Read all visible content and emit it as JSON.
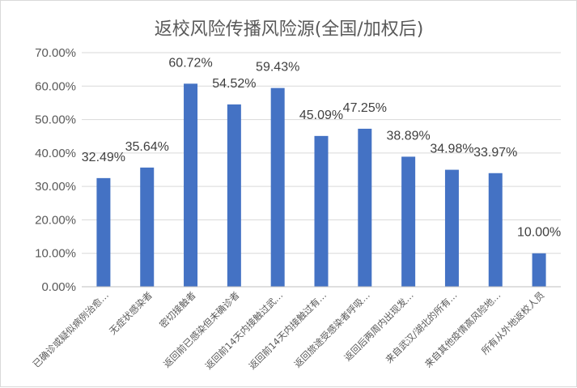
{
  "chart_data": {
    "type": "bar",
    "title": "返校风险传播风险源(全国/加权后)",
    "categories": [
      "已确诊或疑似病例治愈…",
      "无症状感染者",
      "密切接触者",
      "返回前已感染但未确诊者",
      "返回前14天内接触过武…",
      "返回前14天内接触过有…",
      "返回旅途受感染者呼吸…",
      "返回后两周内出现发…",
      "来自武汉/湖北的所有…",
      "来自其他疫情高风险地…",
      "所有从外地返校人员"
    ],
    "values": [
      32.49,
      35.64,
      60.72,
      54.52,
      59.43,
      45.09,
      47.25,
      38.89,
      34.98,
      33.97,
      10.0
    ],
    "data_labels": [
      "32.49%",
      "35.64%",
      "60.72%",
      "54.52%",
      "59.43%",
      "45.09%",
      "47.25%",
      "38.89%",
      "34.98%",
      "33.97%",
      "10.00%"
    ],
    "y_ticks": [
      "0.00%",
      "10.00%",
      "20.00%",
      "30.00%",
      "40.00%",
      "50.00%",
      "60.00%",
      "70.00%"
    ],
    "ylim": [
      0,
      70
    ],
    "xlabel": "",
    "ylabel": "",
    "grid": true,
    "bar_color": "#4472c4"
  }
}
